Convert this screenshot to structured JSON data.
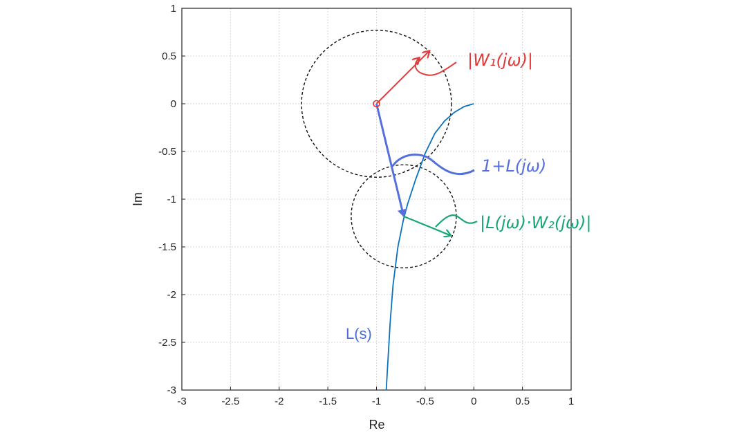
{
  "chart_data": {
    "type": "line",
    "xlabel": "Re",
    "ylabel": "Im",
    "xlim": [
      -3,
      1
    ],
    "ylim": [
      -3,
      1
    ],
    "grid": true,
    "xticks": [
      "-3",
      "-2.5",
      "-2",
      "-1.5",
      "-1",
      "-0.5",
      "0",
      "0.5",
      "1"
    ],
    "yticks": [
      "1",
      "0.5",
      "0",
      "-0.5",
      "-1",
      "-1.5",
      "-2",
      "-2.5",
      "-3"
    ],
    "curve": {
      "label": "L(s)",
      "color": "#0a72bd",
      "points": [
        [
          0,
          0
        ],
        [
          -0.1,
          -0.03
        ],
        [
          -0.2,
          -0.09
        ],
        [
          -0.3,
          -0.18
        ],
        [
          -0.4,
          -0.31
        ],
        [
          -0.5,
          -0.52
        ],
        [
          -0.6,
          -0.8
        ],
        [
          -0.68,
          -1.05
        ],
        [
          -0.72,
          -1.2
        ],
        [
          -0.78,
          -1.5
        ],
        [
          -0.83,
          -1.9
        ],
        [
          -0.86,
          -2.3
        ],
        [
          -0.88,
          -2.65
        ],
        [
          -0.9,
          -3.0
        ]
      ]
    },
    "critical_point": {
      "x": -1,
      "y": 0,
      "color": "#e03030"
    },
    "circles": [
      {
        "cx": -1,
        "cy": 0,
        "r": 0.77
      },
      {
        "cx": -0.72,
        "cy": -1.18,
        "r": 0.54
      }
    ],
    "annotations": [
      {
        "text": "|W₁(jω)|",
        "color": "#e23a3a"
      },
      {
        "text": "1+L(jω)",
        "color": "#5570dd"
      },
      {
        "text": "|L(jω)·W₂(jω)|",
        "color": "#17a677"
      }
    ],
    "vectors": [
      {
        "from": [
          -1,
          0
        ],
        "to": [
          -0.46,
          0.55
        ],
        "color": "#e23a3a"
      },
      {
        "from": [
          -1,
          0
        ],
        "to": [
          -0.72,
          -1.18
        ],
        "color": "#5570dd"
      },
      {
        "from": [
          -0.72,
          -1.18
        ],
        "to": [
          -0.24,
          -1.38
        ],
        "color": "#17a677"
      }
    ]
  }
}
